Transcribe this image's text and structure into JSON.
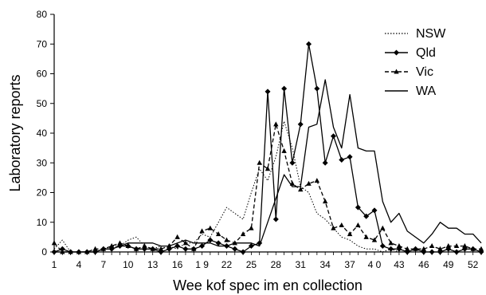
{
  "chart_data": {
    "type": "line",
    "title": "",
    "xlabel": "Wee kof spec im en collection",
    "ylabel": "Laboratory reports",
    "xlim": [
      1,
      53
    ],
    "ylim": [
      0,
      80
    ],
    "x_tick_labels": [
      "1",
      "4",
      "7",
      "10",
      "13",
      "16",
      "1 9",
      "22",
      "25",
      "28",
      "31",
      "34",
      "37",
      "4 0",
      "43",
      "46",
      "49",
      "52"
    ],
    "x_tick_values": [
      1,
      4,
      7,
      10,
      13,
      16,
      19,
      22,
      25,
      28,
      31,
      34,
      37,
      40,
      43,
      46,
      49,
      52
    ],
    "y_ticks": [
      0,
      10,
      20,
      30,
      40,
      50,
      60,
      70,
      80
    ],
    "grid": false,
    "legend_position": "top-right",
    "series": [
      {
        "name": "NSW",
        "style": "dotted",
        "marker": "none",
        "color": "#000000",
        "x": [
          1,
          2,
          3,
          4,
          5,
          6,
          7,
          8,
          9,
          10,
          11,
          12,
          13,
          14,
          15,
          16,
          17,
          18,
          19,
          20,
          21,
          22,
          23,
          24,
          25,
          26,
          27,
          28,
          29,
          30,
          31,
          32,
          33,
          34,
          35,
          36,
          37,
          38,
          39,
          40,
          41,
          42,
          43,
          44,
          45,
          46,
          47,
          48,
          49,
          50,
          51,
          52,
          53
        ],
        "values": [
          1,
          4,
          0,
          0,
          0,
          0,
          1,
          2,
          2,
          4,
          5,
          2,
          1,
          2,
          2,
          1,
          3,
          3,
          6,
          5,
          10,
          15,
          13,
          11,
          20,
          28,
          24,
          32,
          44,
          35,
          22,
          20,
          13,
          11,
          8,
          5,
          4,
          2,
          1,
          1,
          0,
          1,
          0,
          0,
          0,
          0,
          0,
          0,
          1,
          0,
          0,
          0,
          0
        ]
      },
      {
        "name": "Qld",
        "style": "solid",
        "marker": "diamond",
        "color": "#000000",
        "x": [
          1,
          2,
          3,
          4,
          5,
          6,
          7,
          8,
          9,
          10,
          11,
          12,
          13,
          14,
          15,
          16,
          17,
          18,
          19,
          20,
          21,
          22,
          23,
          24,
          25,
          26,
          27,
          28,
          29,
          30,
          31,
          32,
          33,
          34,
          35,
          36,
          37,
          38,
          39,
          40,
          41,
          42,
          43,
          44,
          45,
          46,
          47,
          48,
          49,
          50,
          51,
          52,
          53
        ],
        "values": [
          0,
          1,
          0,
          0,
          0,
          0,
          1,
          1,
          2,
          2,
          1,
          1,
          1,
          0,
          1,
          2,
          1,
          1,
          2,
          4,
          3,
          2,
          1,
          0,
          2,
          3,
          54,
          11,
          55,
          30,
          43,
          70,
          55,
          30,
          39,
          31,
          32,
          15,
          12,
          14,
          2,
          1,
          1,
          0,
          1,
          0,
          0,
          0,
          1,
          0,
          1,
          1,
          0
        ]
      },
      {
        "name": "Vic",
        "style": "dashed",
        "marker": "triangle",
        "color": "#000000",
        "x": [
          1,
          2,
          3,
          4,
          5,
          6,
          7,
          8,
          9,
          10,
          11,
          12,
          13,
          14,
          15,
          16,
          17,
          18,
          19,
          20,
          21,
          22,
          23,
          24,
          25,
          26,
          27,
          28,
          29,
          30,
          31,
          32,
          33,
          34,
          35,
          36,
          37,
          38,
          39,
          40,
          41,
          42,
          43,
          44,
          45,
          46,
          47,
          48,
          49,
          50,
          51,
          52,
          53
        ],
        "values": [
          3,
          0,
          0,
          0,
          0,
          1,
          1,
          2,
          3,
          2,
          1,
          2,
          1,
          1,
          2,
          5,
          3,
          1,
          7,
          8,
          6,
          4,
          3,
          6,
          8,
          30,
          28,
          43,
          34,
          23,
          21,
          23,
          24,
          17,
          8,
          9,
          6,
          9,
          5,
          4,
          8,
          3,
          2,
          1,
          1,
          1,
          2,
          1,
          2,
          2,
          2,
          1,
          1
        ]
      },
      {
        "name": "WA",
        "style": "solid",
        "marker": "none",
        "color": "#000000",
        "x": [
          1,
          2,
          3,
          4,
          5,
          6,
          7,
          8,
          9,
          10,
          11,
          12,
          13,
          14,
          15,
          16,
          17,
          18,
          19,
          20,
          21,
          22,
          23,
          24,
          25,
          26,
          27,
          28,
          29,
          30,
          31,
          32,
          33,
          34,
          35,
          36,
          37,
          38,
          39,
          40,
          41,
          42,
          43,
          44,
          45,
          46,
          47,
          48,
          49,
          50,
          51,
          52,
          53
        ],
        "values": [
          0,
          0,
          0,
          0,
          0,
          0,
          1,
          1,
          2,
          3,
          3,
          3,
          3,
          2,
          2,
          3,
          4,
          3,
          3,
          3,
          2,
          2,
          3,
          3,
          3,
          2,
          10,
          18,
          26,
          22,
          22,
          42,
          43,
          58,
          42,
          35,
          53,
          35,
          34,
          34,
          17,
          10,
          13,
          7,
          5,
          3,
          6,
          10,
          8,
          8,
          6,
          6,
          3
        ]
      }
    ]
  }
}
